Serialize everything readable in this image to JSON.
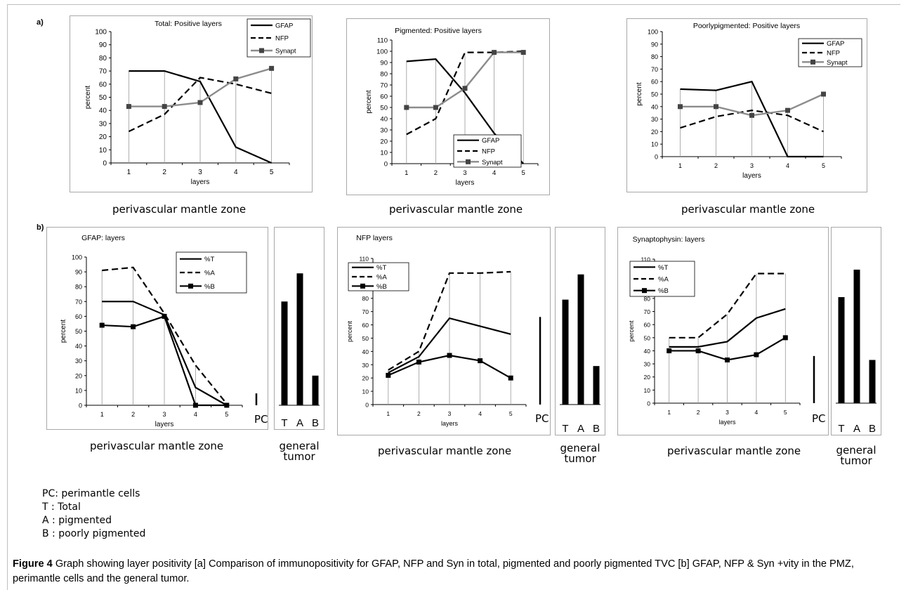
{
  "labels": {
    "a": "a)",
    "b": "b)"
  },
  "zone_label": "perivascular mantle zone",
  "pc_label": "PC",
  "general_tumor": [
    "general",
    "tumor"
  ],
  "legend_notes": [
    "PC: perimantle cells",
    "T : Total",
    "A : pigmented",
    "B : poorly pigmented"
  ],
  "caption": {
    "figure": "Figure 4",
    "text": " Graph showing layer positivity [a] Comparison of immunopositivity for GFAP, NFP and Syn in total, pigmented and poorly pigmented TVC [b] GFAP, NFP & Syn +vity in the PMZ, perimantle cells and the general tumor."
  },
  "chart_data": [
    {
      "id": "a1",
      "type": "line",
      "title": "Total: Positive layers",
      "xlabel": "layers",
      "ylabel": "percent",
      "ylim": [
        0,
        100
      ],
      "ytick_step": 10,
      "categories": [
        1,
        2,
        3,
        4,
        5
      ],
      "legend": "top-right",
      "series": [
        {
          "name": "GFAP",
          "style": "solid-black",
          "values": [
            70,
            70,
            62,
            12,
            0
          ]
        },
        {
          "name": "NFP",
          "style": "dash-black",
          "values": [
            24,
            37,
            65,
            60,
            53
          ]
        },
        {
          "name": "Synapt",
          "style": "gray-square",
          "values": [
            43,
            43,
            46,
            64,
            72
          ]
        }
      ]
    },
    {
      "id": "a2",
      "type": "line",
      "title": "Pigmented: Positive layers",
      "xlabel": "layers",
      "ylabel": "percent",
      "ylim": [
        0,
        110
      ],
      "ytick_step": 10,
      "categories": [
        1,
        2,
        3,
        4,
        5
      ],
      "legend": "bottom-center",
      "series": [
        {
          "name": "GFAP",
          "style": "solid-black",
          "values": [
            91,
            93,
            63,
            27,
            0
          ]
        },
        {
          "name": "NFP",
          "style": "dash-black",
          "values": [
            26,
            40,
            99,
            99,
            100
          ]
        },
        {
          "name": "Synapt",
          "style": "gray-square",
          "values": [
            50,
            50,
            67,
            99,
            99
          ]
        }
      ]
    },
    {
      "id": "a3",
      "type": "line",
      "title": "Poorlypigmented: Positive layers",
      "xlabel": "layers",
      "ylabel": "percent",
      "ylim": [
        0,
        100
      ],
      "ytick_step": 10,
      "categories": [
        1,
        2,
        3,
        4,
        5
      ],
      "legend": "top-right",
      "series": [
        {
          "name": "GFAP",
          "style": "solid-black",
          "values": [
            54,
            53,
            60,
            0,
            0
          ]
        },
        {
          "name": "NFP",
          "style": "dash-black",
          "values": [
            23,
            32,
            37,
            33,
            20
          ]
        },
        {
          "name": "Synapt",
          "style": "gray-square",
          "values": [
            40,
            40,
            33,
            37,
            50
          ]
        }
      ]
    },
    {
      "id": "b1",
      "type": "line",
      "title": "GFAP: layers",
      "xlabel": "layers",
      "ylabel": "percent",
      "ylim": [
        0,
        100
      ],
      "ytick_step": 10,
      "categories": [
        1,
        2,
        3,
        4,
        5
      ],
      "legend": "top-right",
      "series": [
        {
          "name": "%T",
          "style": "solid-black",
          "values": [
            70,
            70,
            61,
            12,
            0
          ]
        },
        {
          "name": "%A",
          "style": "dash-black",
          "values": [
            91,
            93,
            62,
            27,
            1
          ]
        },
        {
          "name": "%B",
          "style": "black-square",
          "values": [
            54,
            53,
            60,
            0,
            0
          ]
        }
      ],
      "pc_value": 8,
      "general_tumor": {
        "categories": [
          "T",
          "A",
          "B"
        ],
        "values": [
          70,
          89,
          20
        ]
      }
    },
    {
      "id": "b2",
      "type": "line",
      "title": "NFP layers",
      "xlabel": "layers",
      "ylabel": "percent",
      "ylim": [
        0,
        110
      ],
      "ytick_step": 10,
      "categories": [
        1,
        2,
        3,
        4,
        5
      ],
      "legend": "top-left",
      "series": [
        {
          "name": "%T",
          "style": "solid-black",
          "values": [
            24,
            36,
            65,
            59,
            53
          ]
        },
        {
          "name": "%A",
          "style": "dash-black",
          "values": [
            26,
            40,
            99,
            99,
            100
          ]
        },
        {
          "name": "%B",
          "style": "black-square",
          "values": [
            22,
            32,
            37,
            33,
            20
          ]
        }
      ],
      "pc_value": 66,
      "general_tumor": {
        "categories": [
          "T",
          "A",
          "B"
        ],
        "values": [
          79,
          98,
          29
        ]
      }
    },
    {
      "id": "b3",
      "type": "line",
      "title": "Synaptophysin: layers",
      "xlabel": "layers",
      "ylabel": "percent",
      "ylim": [
        0,
        110
      ],
      "ytick_step": 10,
      "categories": [
        1,
        2,
        3,
        4,
        5
      ],
      "legend": "top-left",
      "series": [
        {
          "name": "%T",
          "style": "solid-black",
          "values": [
            43,
            43,
            47,
            65,
            72
          ]
        },
        {
          "name": "%A",
          "style": "dash-black",
          "values": [
            50,
            50,
            68,
            99,
            99
          ]
        },
        {
          "name": "%B",
          "style": "black-square",
          "values": [
            40,
            40,
            33,
            37,
            50
          ]
        }
      ],
      "pc_value": 36,
      "general_tumor": {
        "categories": [
          "T",
          "A",
          "B"
        ],
        "values": [
          81,
          102,
          33
        ]
      }
    }
  ]
}
